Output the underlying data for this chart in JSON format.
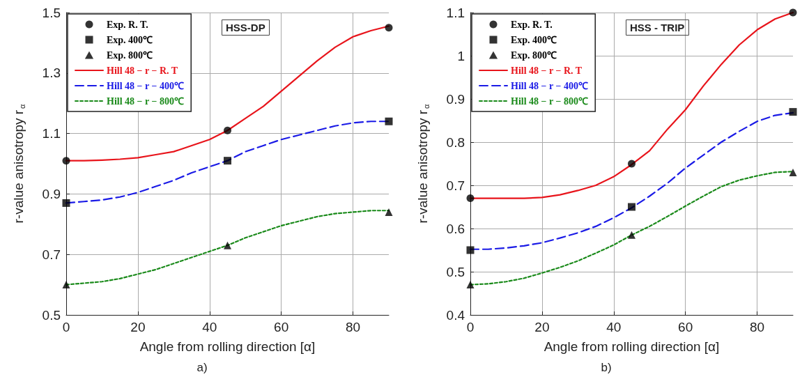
{
  "chart_data": [
    {
      "type": "line",
      "title": "HSS-DP",
      "xlabel": "Angle from rolling direction [α]",
      "ylabel": "r-value anisotropy r$_{α}$",
      "annotations": [
        "a)"
      ],
      "xlim": [
        0,
        90
      ],
      "xticks": [
        0,
        20,
        40,
        60,
        80
      ],
      "ylim": [
        0.5,
        1.5
      ],
      "yticks": [
        0.5,
        0.7,
        0.9,
        1.1,
        1.3,
        1.5
      ],
      "grid": true,
      "legend": "top left",
      "series": [
        {
          "name": "Exp. R. T.",
          "type": "scatter",
          "marker": "circle",
          "color": "#000000",
          "x": [
            0,
            45,
            90
          ],
          "values": [
            1.01,
            1.11,
            1.45
          ]
        },
        {
          "name": "Exp. 400℃",
          "type": "scatter",
          "marker": "square",
          "color": "#000000",
          "x": [
            0,
            45,
            90
          ],
          "values": [
            0.87,
            1.01,
            1.14
          ]
        },
        {
          "name": "Exp. 800℃",
          "type": "scatter",
          "marker": "triangle",
          "color": "#000000",
          "x": [
            0,
            45,
            90
          ],
          "values": [
            0.6,
            0.73,
            0.84
          ]
        },
        {
          "name": "Hill 48 − r − R. T",
          "type": "line",
          "marker": "none",
          "line_style": "solid",
          "color": "#e8141b",
          "x": [
            0,
            5,
            10,
            15,
            20,
            25,
            30,
            35,
            40,
            45,
            50,
            55,
            60,
            65,
            70,
            75,
            80,
            85,
            90
          ],
          "values": [
            1.01,
            1.01,
            1.012,
            1.015,
            1.02,
            1.03,
            1.04,
            1.06,
            1.08,
            1.11,
            1.15,
            1.19,
            1.24,
            1.29,
            1.34,
            1.385,
            1.42,
            1.44,
            1.455
          ]
        },
        {
          "name": "Hill 48 − r − 400℃",
          "type": "line",
          "marker": "none",
          "line_style": "dashed",
          "color": "#1a1ae6",
          "x": [
            0,
            5,
            10,
            15,
            20,
            25,
            30,
            35,
            40,
            45,
            50,
            55,
            60,
            65,
            70,
            75,
            80,
            85,
            90
          ],
          "values": [
            0.87,
            0.875,
            0.88,
            0.89,
            0.905,
            0.925,
            0.945,
            0.97,
            0.99,
            1.01,
            1.04,
            1.06,
            1.08,
            1.095,
            1.11,
            1.125,
            1.135,
            1.14,
            1.14
          ]
        },
        {
          "name": "Hill 48 − r − 800℃",
          "type": "line",
          "marker": "none",
          "line_style": "dotted",
          "color": "#1a8a1a",
          "x": [
            0,
            5,
            10,
            15,
            20,
            25,
            30,
            35,
            40,
            45,
            50,
            55,
            60,
            65,
            70,
            75,
            80,
            85,
            90
          ],
          "values": [
            0.6,
            0.605,
            0.61,
            0.62,
            0.635,
            0.65,
            0.67,
            0.69,
            0.71,
            0.73,
            0.755,
            0.775,
            0.795,
            0.81,
            0.825,
            0.835,
            0.84,
            0.845,
            0.845
          ]
        }
      ]
    },
    {
      "type": "line",
      "title": "HSS - TRIP",
      "xlabel": "Angle from rolling direction [α]",
      "ylabel": "r-value anisotropy r$_{α}$",
      "annotations": [
        "b)"
      ],
      "xlim": [
        0,
        90
      ],
      "xticks": [
        0,
        20,
        40,
        60,
        80
      ],
      "ylim": [
        0.4,
        1.1
      ],
      "yticks": [
        0.4,
        0.5,
        0.6,
        0.7,
        0.8,
        0.9,
        1,
        1.1
      ],
      "grid": true,
      "legend": "top left",
      "series": [
        {
          "name": "Exp. R. T.",
          "type": "scatter",
          "marker": "circle",
          "color": "#000000",
          "x": [
            0,
            45,
            90
          ],
          "values": [
            0.67,
            0.75,
            1.1
          ]
        },
        {
          "name": "Exp. 400℃",
          "type": "scatter",
          "marker": "square",
          "color": "#000000",
          "x": [
            0,
            45,
            90
          ],
          "values": [
            0.55,
            0.65,
            0.87
          ]
        },
        {
          "name": "Exp. 800℃",
          "type": "scatter",
          "marker": "triangle",
          "color": "#000000",
          "x": [
            0,
            45,
            90
          ],
          "values": [
            0.47,
            0.585,
            0.73
          ]
        },
        {
          "name": "Hill 48 − r − R. T",
          "type": "line",
          "marker": "none",
          "line_style": "solid",
          "color": "#e8141b",
          "x": [
            0,
            5,
            10,
            15,
            20,
            25,
            30,
            35,
            40,
            45,
            50,
            55,
            60,
            65,
            70,
            75,
            80,
            85,
            90
          ],
          "values": [
            0.67,
            0.67,
            0.67,
            0.67,
            0.672,
            0.678,
            0.688,
            0.7,
            0.72,
            0.748,
            0.78,
            0.83,
            0.875,
            0.93,
            0.98,
            1.025,
            1.06,
            1.085,
            1.1
          ]
        },
        {
          "name": "Hill 48 − r − 400℃",
          "type": "line",
          "marker": "none",
          "line_style": "dashed",
          "color": "#1a1ae6",
          "x": [
            0,
            5,
            10,
            15,
            20,
            25,
            30,
            35,
            40,
            45,
            50,
            55,
            60,
            65,
            70,
            75,
            80,
            85,
            90
          ],
          "values": [
            0.552,
            0.552,
            0.555,
            0.56,
            0.567,
            0.578,
            0.59,
            0.605,
            0.625,
            0.648,
            0.675,
            0.705,
            0.74,
            0.77,
            0.8,
            0.825,
            0.848,
            0.862,
            0.868
          ]
        },
        {
          "name": "Hill 48 − r − 800℃",
          "type": "line",
          "marker": "none",
          "line_style": "dotted",
          "color": "#1a8a1a",
          "x": [
            0,
            5,
            10,
            15,
            20,
            25,
            30,
            35,
            40,
            45,
            50,
            55,
            60,
            65,
            70,
            75,
            80,
            85,
            90
          ],
          "values": [
            0.47,
            0.472,
            0.477,
            0.485,
            0.497,
            0.51,
            0.525,
            0.543,
            0.562,
            0.585,
            0.605,
            0.628,
            0.652,
            0.675,
            0.697,
            0.712,
            0.722,
            0.73,
            0.732
          ]
        }
      ]
    }
  ]
}
